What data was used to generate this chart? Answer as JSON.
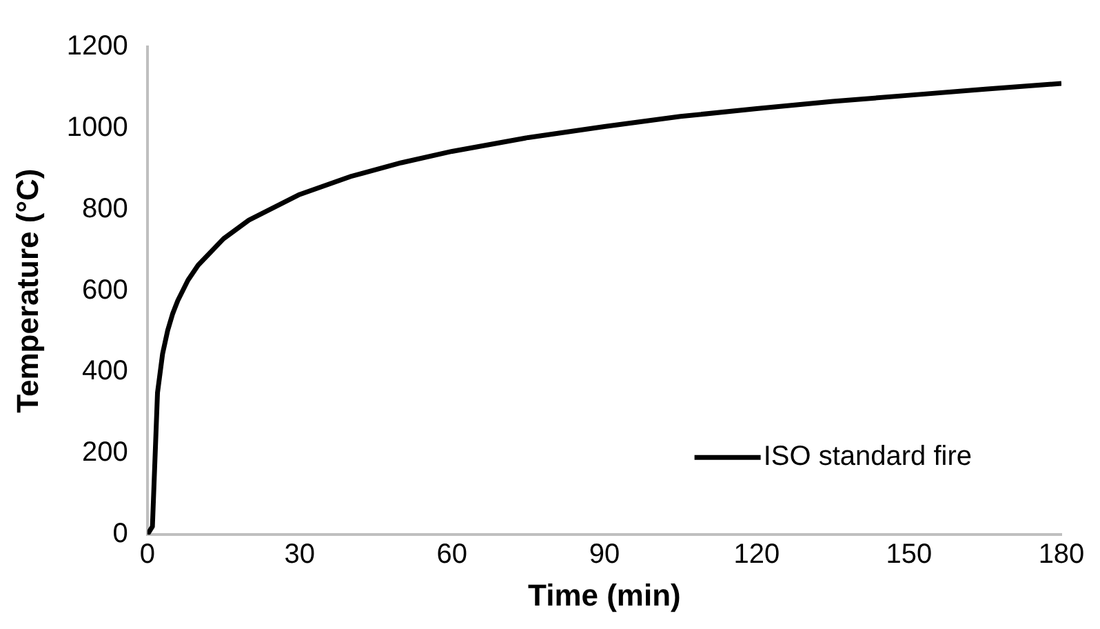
{
  "chart_data": {
    "type": "line",
    "xlabel": "Time (min)",
    "ylabel": "Temperature (°C)",
    "xlim": [
      0,
      180
    ],
    "xticks": [
      0,
      30,
      60,
      90,
      120,
      150,
      180
    ],
    "ylim": [
      0,
      1200
    ],
    "yticks": [
      0,
      200,
      400,
      600,
      800,
      1000,
      1200
    ],
    "grid": false,
    "legend": "bottom right",
    "marker": "none",
    "line_style": "solid",
    "x": [
      0,
      1,
      2,
      3,
      4,
      5,
      6,
      8,
      10,
      15,
      20,
      30,
      40,
      50,
      60,
      75,
      90,
      105,
      120,
      135,
      150,
      165,
      180
    ],
    "series": [
      {
        "name": "ISO standard fire",
        "color": "#000000",
        "values": [
          0,
          20,
          349,
          445,
          502,
          544,
          576,
          626,
          663,
          728,
          774,
          837,
          881,
          915,
          943,
          977,
          1004,
          1029,
          1048,
          1066,
          1081,
          1096,
          1110
        ]
      }
    ]
  }
}
